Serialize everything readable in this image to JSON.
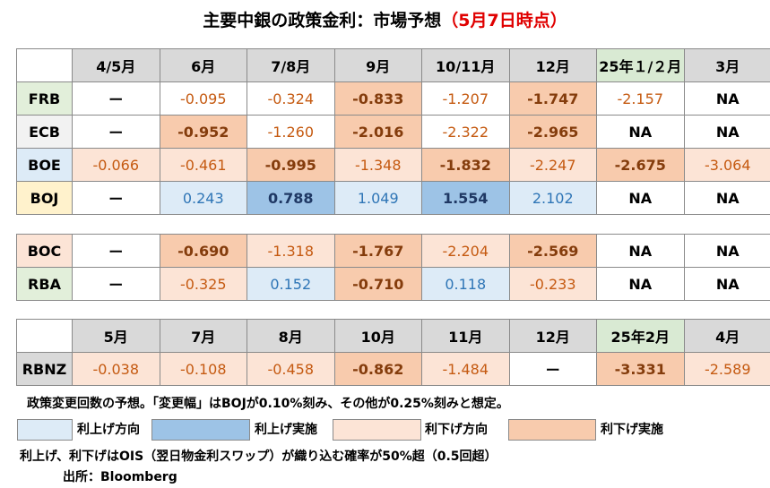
{
  "title": {
    "main": "主要中銀の政策金利：市場予想",
    "date": "（5月7日時点）"
  },
  "table1": {
    "headers": [
      "4/5月",
      "6月",
      "7/8月",
      "9月",
      "10/11月",
      "12月",
      "25年１/２月",
      "3月"
    ],
    "rows": [
      {
        "label": "FRB",
        "cells": [
          [
            "ー",
            "dash"
          ],
          [
            "-0.095",
            "c0"
          ],
          [
            "-0.324",
            "c0"
          ],
          [
            "-0.833",
            "c4 b"
          ],
          [
            "-1.207",
            "c0"
          ],
          [
            "-1.747",
            "c4 b"
          ],
          [
            "-2.157",
            "c0"
          ],
          [
            "NA",
            "na"
          ]
        ]
      },
      {
        "label": "ECB",
        "cells": [
          [
            "ー",
            "dash"
          ],
          [
            "-0.952",
            "c4 b"
          ],
          [
            "-1.260",
            "c0"
          ],
          [
            "-2.016",
            "c4 b"
          ],
          [
            "-2.322",
            "c0"
          ],
          [
            "-2.965",
            "c4 b"
          ],
          [
            "NA",
            "na"
          ],
          [
            "NA",
            "na"
          ]
        ]
      },
      {
        "label": "BOE",
        "cells": [
          [
            "-0.066",
            "c3"
          ],
          [
            "-0.461",
            "c3"
          ],
          [
            "-0.995",
            "c4 b"
          ],
          [
            "-1.348",
            "c3"
          ],
          [
            "-1.832",
            "c4 b"
          ],
          [
            "-2.247",
            "c3"
          ],
          [
            "-2.675",
            "c4 b"
          ],
          [
            "-3.064",
            "c3"
          ]
        ]
      },
      {
        "label": "BOJ",
        "cells": [
          [
            "ー",
            "dash"
          ],
          [
            "0.243",
            "c1"
          ],
          [
            "0.788",
            "c2 b"
          ],
          [
            "1.049",
            "c1"
          ],
          [
            "1.554",
            "c2 b"
          ],
          [
            "2.102",
            "c1"
          ],
          [
            "NA",
            "na"
          ],
          [
            "NA",
            "na"
          ]
        ]
      }
    ]
  },
  "table2": {
    "rows": [
      {
        "label": "BOC",
        "cells": [
          [
            "ー",
            "dash"
          ],
          [
            "-0.690",
            "c4 b"
          ],
          [
            "-1.318",
            "c3"
          ],
          [
            "-1.767",
            "c4 b"
          ],
          [
            "-2.204",
            "c3"
          ],
          [
            "-2.569",
            "c4 b"
          ],
          [
            "NA",
            "na"
          ],
          [
            "NA",
            "na"
          ]
        ]
      },
      {
        "label": "RBA",
        "cells": [
          [
            "ー",
            "dash"
          ],
          [
            "-0.325",
            "c3"
          ],
          [
            "0.152",
            "c1"
          ],
          [
            "-0.710",
            "c4 b"
          ],
          [
            "0.118",
            "c1"
          ],
          [
            "-0.233",
            "c3"
          ],
          [
            "NA",
            "na"
          ],
          [
            "NA",
            "na"
          ]
        ]
      }
    ]
  },
  "table3": {
    "headers": [
      "5月",
      "7月",
      "8月",
      "10月",
      "11月",
      "12月",
      "25年2月",
      "4月"
    ],
    "rows": [
      {
        "label": "RBNZ",
        "cells": [
          [
            "-0.038",
            "c3"
          ],
          [
            "-0.108",
            "c3"
          ],
          [
            "-0.458",
            "c3"
          ],
          [
            "-0.862",
            "c4 b"
          ],
          [
            "-1.484",
            "c3"
          ],
          [
            "ー",
            "dash"
          ],
          [
            "-3.331",
            "c4 b"
          ],
          [
            "-2.589",
            "c3"
          ]
        ]
      }
    ]
  },
  "note": "政策変更回数の予想。「変更幅」はBOJが0.10%刻み、その他が0.25%刻みと想定。",
  "legend": [
    {
      "label": "利上げ方向",
      "color": "#ddebf7"
    },
    {
      "label": "利上げ実施",
      "color": "#9dc3e6"
    },
    {
      "label": "利下げ方向",
      "color": "#fce4d6"
    },
    {
      "label": "利下げ実施",
      "color": "#f8cbad"
    }
  ],
  "footnote": "利上げ、利下げはOIS（翌日物金利スワップ）が織り込む確率が50%超（0.5回超）",
  "source": "出所：Bloomberg"
}
